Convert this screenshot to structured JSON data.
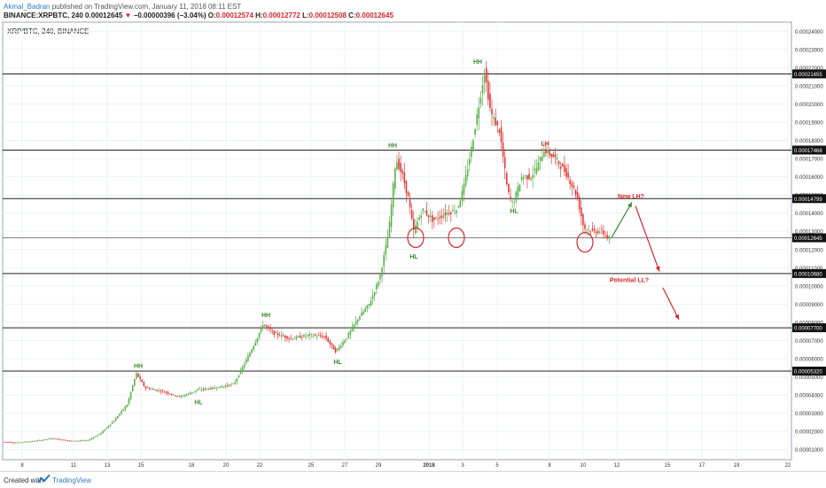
{
  "header": {
    "author": "Akmal_Badran",
    "published_text": "published on TradingView.com, January 11, 2018 08:11 EST",
    "symbol": "BINANCE:XRPBTC, 240",
    "price": "0.00012645",
    "change_arrow": "▼",
    "change": "−0.00000396 (−3.04%)",
    "o_label": "O:",
    "o": "0.00012574",
    "h_label": "H:",
    "h": "0.00012772",
    "l_label": "L:",
    "l": "0.00012508",
    "c_label": "C:",
    "c": "0.00012645"
  },
  "footer": {
    "created_with": "Created with",
    "brand": "TradingView"
  },
  "colors": {
    "up": "#5ab14a",
    "down": "#e03a3a",
    "hline": "#222222",
    "annotation_green": "#3a8a2f",
    "annotation_red": "#d9262b",
    "grid": "#eef1f4"
  },
  "chart_data": {
    "type": "candlestick",
    "title": "XRP/BTC, 240, BINANCE",
    "ylim": [
      4.5e-06,
      0.000245
    ],
    "x_ticks": [
      "8",
      "11",
      "13",
      "15",
      "18",
      "20",
      "22",
      "25",
      "27",
      "29",
      "2018",
      "3",
      "5",
      "8",
      "10",
      "12",
      "15",
      "17",
      "19",
      "22"
    ],
    "y_ticks": [
      "0.00024000",
      "0.00023000",
      "0.00022000",
      "0.00021000",
      "0.00020000",
      "0.00019000",
      "0.00018000",
      "0.00017000",
      "0.00016000",
      "0.00015000",
      "0.00014000",
      "0.00013000",
      "0.00012000",
      "0.00011000",
      "0.00010000",
      "0.00009000",
      "0.00008000",
      "0.00007000",
      "0.00006000",
      "0.00005000",
      "0.00004000",
      "0.00003000",
      "0.00002000",
      "0.00001000"
    ],
    "horizontal_levels": [
      "0.00021655",
      "0.00017468",
      "0.00014799",
      "0.00012645",
      "0.00010680",
      "0.00007700",
      "0.00005320"
    ],
    "current_price": "0.00012645",
    "price_path": [
      [
        0,
        1.45e-05
      ],
      [
        20,
        1.38e-05
      ],
      [
        45,
        1.5e-05
      ],
      [
        60,
        1.62e-05
      ],
      [
        80,
        1.48e-05
      ],
      [
        100,
        1.5e-05
      ],
      [
        115,
        1.9e-05
      ],
      [
        130,
        2.6e-05
      ],
      [
        145,
        3.5e-05
      ],
      [
        155,
        5.2e-05
      ],
      [
        165,
        4.4e-05
      ],
      [
        185,
        4.2e-05
      ],
      [
        205,
        3.9e-05
      ],
      [
        225,
        4.3e-05
      ],
      [
        245,
        4.4e-05
      ],
      [
        265,
        4.6e-05
      ],
      [
        280,
        6e-05
      ],
      [
        290,
        7e-05
      ],
      [
        298,
        7.9e-05
      ],
      [
        310,
        7.4e-05
      ],
      [
        330,
        7.1e-05
      ],
      [
        350,
        7.3e-05
      ],
      [
        368,
        7.2e-05
      ],
      [
        380,
        6.4e-05
      ],
      [
        393,
        7.2e-05
      ],
      [
        405,
        8.2e-05
      ],
      [
        418,
        9e-05
      ],
      [
        430,
        0.000105
      ],
      [
        440,
        0.00013
      ],
      [
        448,
        0.00017
      ],
      [
        456,
        0.00016
      ],
      [
        462,
        0.000148
      ],
      [
        468,
        0.00013
      ],
      [
        478,
        0.000142
      ],
      [
        490,
        0.000136
      ],
      [
        505,
        0.00014
      ],
      [
        517,
        0.000142
      ],
      [
        525,
        0.000155
      ],
      [
        533,
        0.000175
      ],
      [
        540,
        0.000195
      ],
      [
        548,
        0.000218
      ],
      [
        555,
        0.000195
      ],
      [
        565,
        0.000185
      ],
      [
        574,
        0.000152
      ],
      [
        580,
        0.000145
      ],
      [
        590,
        0.00016
      ],
      [
        600,
        0.00016
      ],
      [
        608,
        0.000166
      ],
      [
        615,
        0.000175
      ],
      [
        628,
        0.00017
      ],
      [
        640,
        0.000162
      ],
      [
        652,
        0.00015
      ],
      [
        660,
        0.000132
      ],
      [
        670,
        0.00013
      ],
      [
        680,
        0.00013
      ],
      [
        687,
        0.0001265
      ]
    ],
    "annotations": [
      {
        "text": "HH",
        "x": 156,
        "y": 5.5e-05,
        "color": "green"
      },
      {
        "text": "HL",
        "x": 224,
        "y": 3.5e-05,
        "color": "green"
      },
      {
        "text": "HH",
        "x": 300,
        "y": 8.3e-05,
        "color": "green"
      },
      {
        "text": "HL",
        "x": 381,
        "y": 5.7e-05,
        "color": "green"
      },
      {
        "text": "HH",
        "x": 443,
        "y": 0.000176,
        "color": "green"
      },
      {
        "text": "HL",
        "x": 467,
        "y": 0.000115,
        "color": "green"
      },
      {
        "text": "HH",
        "x": 539,
        "y": 0.000222,
        "color": "green"
      },
      {
        "text": "HL",
        "x": 580,
        "y": 0.00014,
        "color": "green"
      },
      {
        "text": "LH",
        "x": 615,
        "y": 0.000177,
        "color": "red"
      },
      {
        "text": "New LH?",
        "x": 712,
        "y": 0.000148,
        "color": "red"
      },
      {
        "text": "Potential LL?",
        "x": 710,
        "y": 0.000102,
        "color": "red"
      }
    ]
  }
}
